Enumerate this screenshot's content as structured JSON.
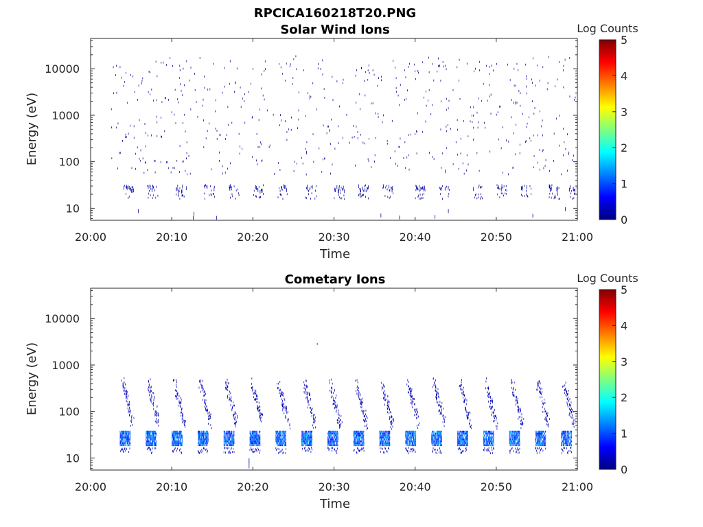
{
  "figure_title": "RPCICA160218T20.PNG",
  "colorbar": {
    "label": "Log Counts",
    "ticks": [
      "0",
      "1",
      "2",
      "3",
      "4",
      "5"
    ],
    "range": [
      0,
      5
    ],
    "colormap": "jet"
  },
  "chart_data": [
    {
      "type": "heatmap",
      "title": "Solar Wind Ions",
      "xlabel": "Time",
      "ylabel": "Energy (eV)",
      "xticks": [
        "20:00",
        "20:10",
        "20:20",
        "20:30",
        "20:40",
        "20:50",
        "21:00"
      ],
      "xlim": [
        "20:00",
        "21:00"
      ],
      "yscale": "log",
      "yticks": [
        "10",
        "100",
        "1000",
        "10000"
      ],
      "ylim": [
        5.5,
        45000
      ],
      "z_label": "Log Counts",
      "z_range": [
        0,
        5
      ],
      "observed": "sparse counts mostly at log count ~0; persistent band near 20-30 eV; scattered hits between ~50 eV and ~17000 eV"
    },
    {
      "type": "heatmap",
      "title": "Cometary Ions",
      "xlabel": "Time",
      "ylabel": "Energy (eV)",
      "xticks": [
        "20:00",
        "20:10",
        "20:20",
        "20:30",
        "20:40",
        "20:50",
        "21:00"
      ],
      "xlim": [
        "20:00",
        "21:00"
      ],
      "yscale": "log",
      "yticks": [
        "10",
        "100",
        "1000",
        "10000"
      ],
      "ylim": [
        5.5,
        45000
      ],
      "z_label": "Log Counts",
      "z_range": [
        0,
        5
      ],
      "observed": "periodic bursts roughly every 3 minutes starting ~20:04; intense band near 20-35 eV (log counts up to ~1.3); dispersed hits up to ~400 eV"
    }
  ]
}
